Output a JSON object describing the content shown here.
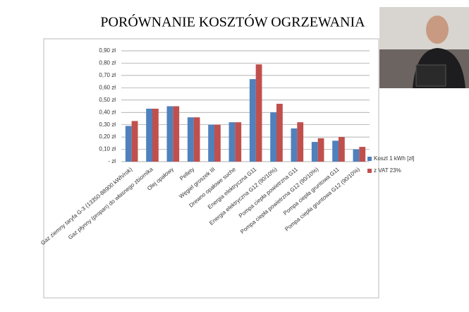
{
  "chart_data": {
    "type": "bar",
    "title": "PORÓWNANIE KOSZTÓW OGRZEWANIA",
    "categories": [
      "Gaz ziemny taryfa G-3 (13350-88900 kWh/rok)",
      "Gaz płynny (propan) do własnego zbiornika",
      "Olej opałowy",
      "Pellety",
      "Węgiel groszek III",
      "Drewno opałowe suche",
      "Energia elektryczna G11",
      "Energia elektryczna G12 (90/10%)",
      "Pompa ciepła powietrzna G11",
      "Pompa ciepła powietrzna G12 (90/10%)",
      "Pompa ciepła gruntowa G11",
      "Pompa ciepła gruntowa G12 (90/10%)"
    ],
    "series": [
      {
        "name": "Koszt 1 kWh [zł]",
        "color": "#4f81bd",
        "values": [
          0.29,
          0.43,
          0.45,
          0.36,
          0.3,
          0.32,
          0.67,
          0.4,
          0.27,
          0.16,
          0.17,
          0.1
        ]
      },
      {
        "name": "z VAT 23%",
        "color": "#c0504d",
        "values": [
          0.33,
          0.43,
          0.45,
          0.36,
          0.3,
          0.32,
          0.79,
          0.47,
          0.32,
          0.19,
          0.2,
          0.12
        ]
      }
    ],
    "ylim": [
      0,
      0.9
    ],
    "yticks": [
      {
        "value": 0,
        "label": "-   zł"
      },
      {
        "value": 0.1,
        "label": "0,10 zł"
      },
      {
        "value": 0.2,
        "label": "0,20 zł"
      },
      {
        "value": 0.3,
        "label": "0,30 zł"
      },
      {
        "value": 0.4,
        "label": "0,40 zł"
      },
      {
        "value": 0.5,
        "label": "0,50 zł"
      },
      {
        "value": 0.6,
        "label": "0,60 zł"
      },
      {
        "value": 0.7,
        "label": "0,70 zł"
      },
      {
        "value": 0.8,
        "label": "0,80 zł"
      },
      {
        "value": 0.9,
        "label": "0,90 zł"
      }
    ],
    "grid": true
  }
}
